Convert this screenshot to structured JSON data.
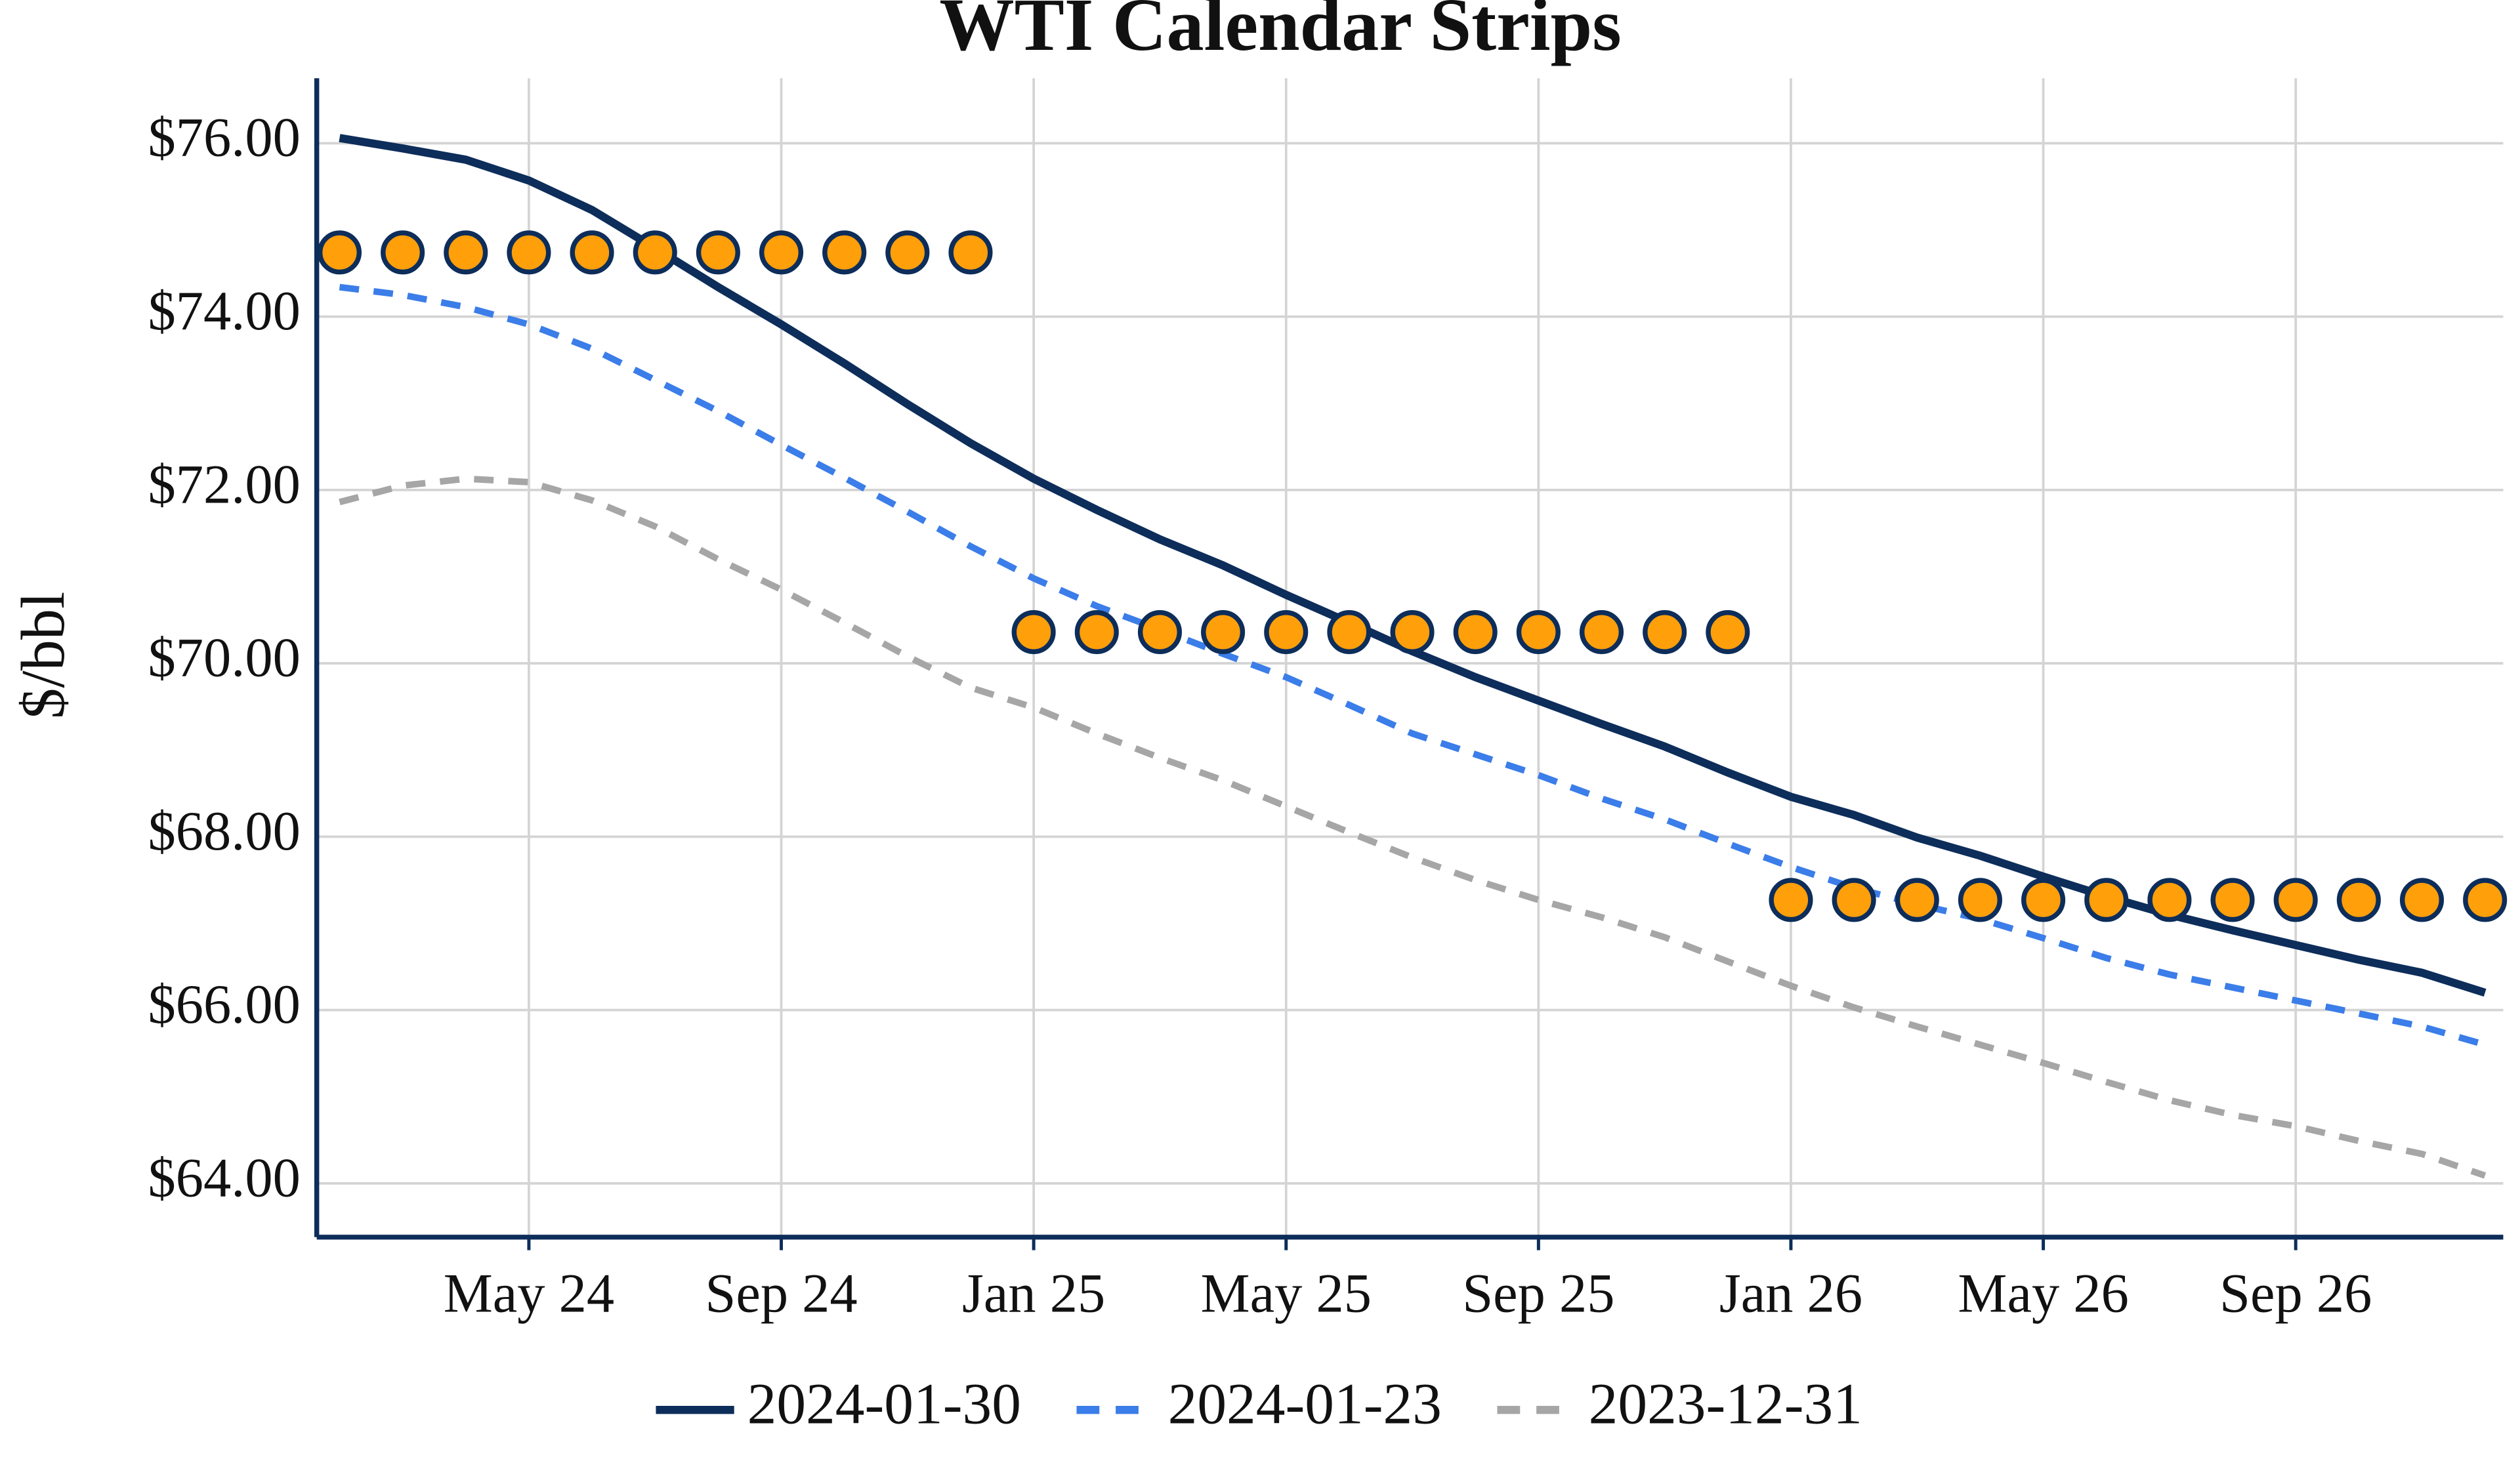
{
  "chart_data": {
    "type": "line",
    "title": "WTI Calendar Strips",
    "y_label": "$/bbl",
    "categories": [
      null,
      null,
      null,
      "May 24",
      null,
      null,
      null,
      "Sep 24",
      null,
      null,
      null,
      "Jan 25",
      null,
      null,
      null,
      "May 25",
      null,
      null,
      null,
      "Sep 25",
      null,
      null,
      null,
      "Jan 26",
      null,
      null,
      null,
      "May 26",
      null,
      null,
      null,
      "Sep 26",
      null,
      null,
      null
    ],
    "series": [
      {
        "name": "2024-01-30",
        "color": "#0d2d5a",
        "style": "solid",
        "values": [
          76.06,
          75.94,
          75.81,
          75.57,
          75.23,
          74.79,
          74.34,
          73.91,
          73.46,
          72.99,
          72.54,
          72.13,
          71.77,
          71.43,
          71.13,
          70.79,
          70.47,
          70.14,
          69.84,
          69.57,
          69.3,
          69.04,
          68.74,
          68.46,
          68.25,
          67.99,
          67.78,
          67.54,
          67.31,
          67.1,
          66.92,
          66.75,
          66.58,
          66.43,
          66.2
        ]
      },
      {
        "name": "2024-01-23",
        "color": "#3b7de9",
        "style": "dashed",
        "values": [
          74.34,
          74.25,
          74.11,
          73.91,
          73.63,
          73.27,
          72.91,
          72.52,
          72.14,
          71.75,
          71.35,
          70.98,
          70.66,
          70.39,
          70.11,
          69.84,
          69.52,
          69.19,
          68.95,
          68.71,
          68.44,
          68.2,
          67.92,
          67.65,
          67.41,
          67.22,
          67.05,
          66.83,
          66.6,
          66.41,
          66.26,
          66.11,
          65.96,
          65.81,
          65.6
        ]
      },
      {
        "name": "2023-12-31",
        "color": "#a6a6a6",
        "style": "dashed",
        "values": [
          71.86,
          72.05,
          72.13,
          72.09,
          71.88,
          71.58,
          71.2,
          70.85,
          70.47,
          70.08,
          69.72,
          69.49,
          69.19,
          68.91,
          68.65,
          68.35,
          68.05,
          67.76,
          67.5,
          67.27,
          67.07,
          66.84,
          66.56,
          66.28,
          66.03,
          65.81,
          65.6,
          65.39,
          65.17,
          64.96,
          64.79,
          64.66,
          64.49,
          64.34,
          64.09
        ]
      }
    ],
    "strip": {
      "color": "#ff9f0a",
      "edge_color": "#0d2d5a",
      "values": [
        74.74,
        74.74,
        74.74,
        74.74,
        74.74,
        74.74,
        74.74,
        74.74,
        74.74,
        74.74,
        74.74,
        70.36,
        70.36,
        70.36,
        70.36,
        70.36,
        70.36,
        70.36,
        70.36,
        70.36,
        70.36,
        70.36,
        70.36,
        67.27,
        67.27,
        67.27,
        67.27,
        67.27,
        67.27,
        67.27,
        67.27,
        67.27,
        67.27,
        67.27,
        67.27
      ]
    },
    "ylim": [
      63.38,
      76.75
    ],
    "yticks": [
      {
        "value": 64,
        "label": "$64.00"
      },
      {
        "value": 66,
        "label": "$66.00"
      },
      {
        "value": 68,
        "label": "$68.00"
      },
      {
        "value": 70,
        "label": "$70.00"
      },
      {
        "value": 72,
        "label": "$72.00"
      },
      {
        "value": 74,
        "label": "$74.00"
      },
      {
        "value": 76,
        "label": "$76.00"
      }
    ],
    "grid": true,
    "legend": "bottom"
  }
}
